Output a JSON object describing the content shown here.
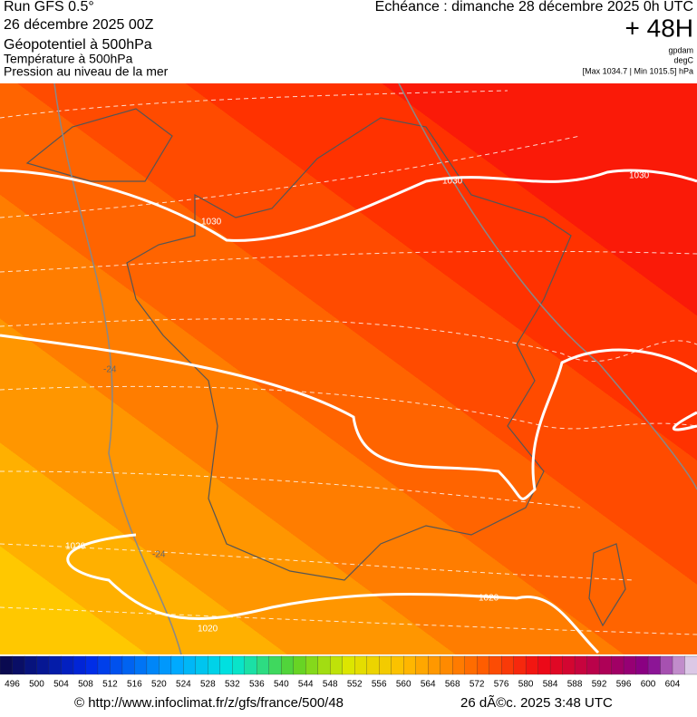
{
  "header": {
    "run": "Run GFS 0.5°",
    "date": "26 décembre 2025 00Z",
    "field1": "Géopotentiel à 500hPa",
    "field2": "Température à 500hPa",
    "field3": "Pression au niveau de la mer",
    "valid": "Echéance : dimanche 28 décembre 2025 0h UTC",
    "lead": "+ 48H",
    "unit1": "gpdam",
    "unit2": "degC",
    "range": "[Max 1034.7 | Min 1015.5] hPa"
  },
  "map": {
    "isobar_labels": [
      "1030",
      "1030",
      "1030",
      "1020",
      "1020",
      "1020"
    ],
    "isotherm_labels": [
      "-24",
      "-24"
    ]
  },
  "scale": {
    "labels": [
      496,
      500,
      504,
      508,
      512,
      516,
      520,
      524,
      528,
      532,
      536,
      540,
      544,
      548,
      552,
      556,
      560,
      564,
      568,
      572,
      576,
      580,
      584,
      588,
      592,
      596,
      600,
      604
    ]
  },
  "footer": {
    "source": "© http://www.infoclimat.fr/z/gfs/france/500/48",
    "stamp": "26 dÃ©c. 2025  3:48 UTC"
  }
}
